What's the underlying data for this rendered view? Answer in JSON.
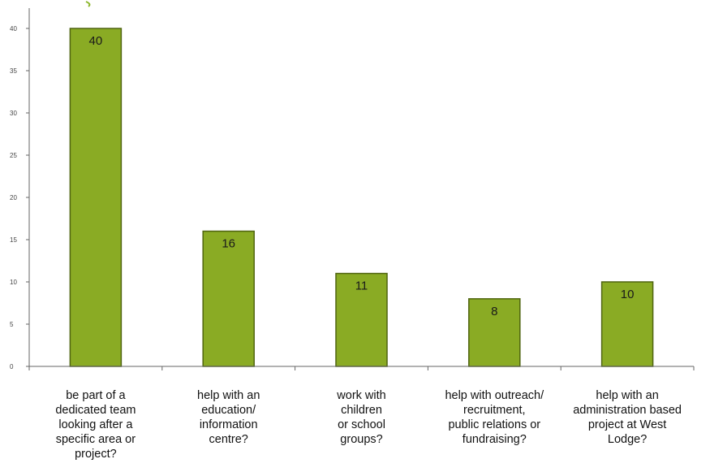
{
  "colors": {
    "bar_fill": "#8aab24",
    "bar_stroke": "#4f6410",
    "axis": "#666666",
    "title_fragment": "#8ab528"
  },
  "chart_data": {
    "type": "bar",
    "title": "",
    "xlabel": "",
    "ylabel": "",
    "ylim": [
      0,
      40
    ],
    "yticks": [
      0,
      5,
      10,
      15,
      20,
      25,
      30,
      35,
      40
    ],
    "grid": false,
    "legend": "none",
    "categories": [
      "be part of a dedicated team looking after a specific area or project?",
      "help with an education/ information centre?",
      "work with children or school groups?",
      "help with outreach/ recruitment, public relations or fundraising?",
      "help with an administration based project at West Lodge?"
    ],
    "category_lines": [
      [
        "be part of a",
        "dedicated team",
        "looking after a",
        "specific area or",
        "project?"
      ],
      [
        "help with an",
        "education/",
        "information",
        "centre?"
      ],
      [
        "work with",
        "children",
        "or school",
        "groups?"
      ],
      [
        "help with outreach/",
        "recruitment,",
        "public relations or",
        "fundraising?"
      ],
      [
        "help with an",
        "administration based",
        "project at West",
        "Lodge?"
      ]
    ],
    "values": [
      40,
      16,
      11,
      8,
      10
    ],
    "data_labels": [
      "40",
      "16",
      "11",
      "8",
      "10"
    ]
  }
}
